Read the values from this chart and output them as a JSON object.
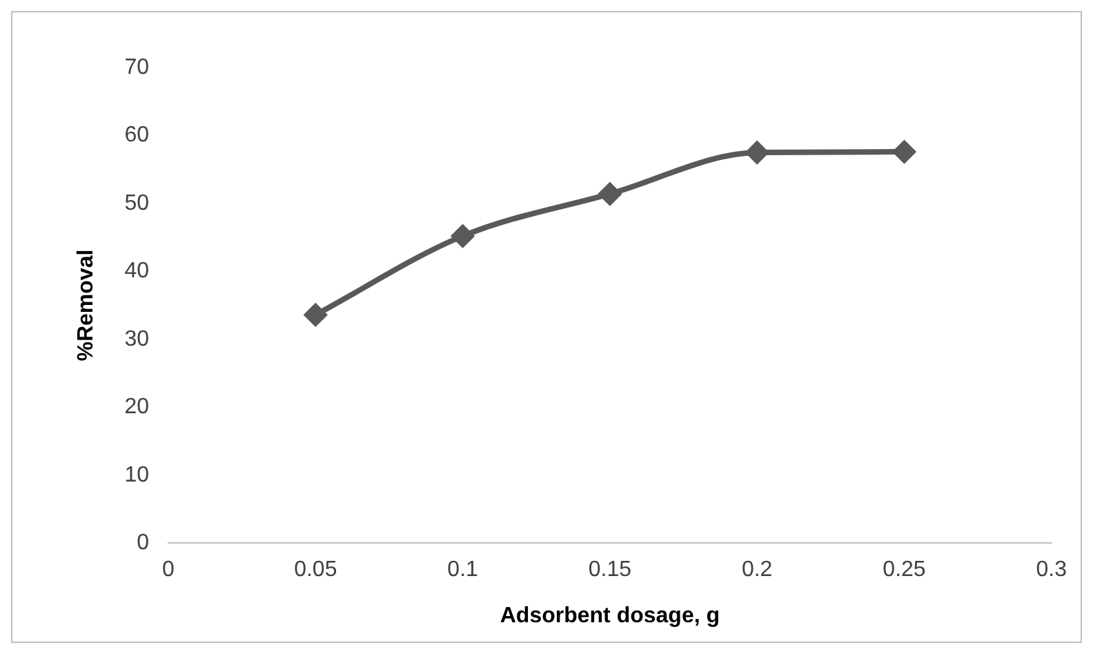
{
  "chart_data": {
    "type": "line",
    "xlabel": "Adsorbent dosage, g",
    "ylabel": "%Removal",
    "x": [
      0.05,
      0.1,
      0.15,
      0.2,
      0.25
    ],
    "series": [
      {
        "color": "#595959",
        "values": [
          33.6,
          45.2,
          51.4,
          57.5,
          57.6
        ]
      }
    ],
    "xlim": [
      0,
      0.3
    ],
    "xticks": [
      0,
      0.05,
      0.1,
      0.15,
      0.2,
      0.25,
      0.3
    ],
    "ylim": [
      0,
      70
    ],
    "yticks": [
      0,
      10,
      20,
      30,
      40,
      50,
      60,
      70
    ],
    "grid": false,
    "legend": false,
    "marker": "diamond",
    "line_style": "solid"
  }
}
